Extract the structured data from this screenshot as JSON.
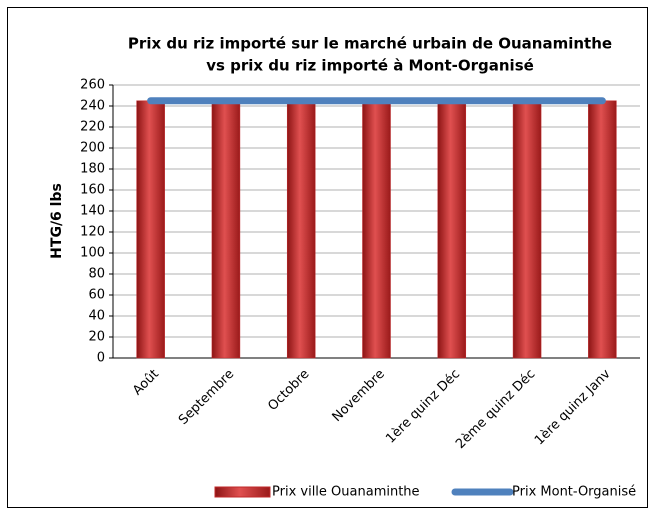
{
  "chart_data": {
    "type": "bar",
    "title": [
      "Prix du riz importé sur le marché urbain de Ouanaminthe",
      "vs  prix du riz importé à Mont-Organisé"
    ],
    "y_label": "HTG/6 lbs",
    "categories": [
      "Août",
      "Septembre",
      "Octobre",
      "Novembre",
      "1ère quinz Déc",
      "2ème quinz Déc",
      "1ère quinz Janv"
    ],
    "series": [
      {
        "name": "Prix ville Ouanaminthe",
        "type": "bar",
        "color": "#c0282a",
        "values": [
          245,
          245,
          245,
          245,
          245,
          245,
          245
        ]
      },
      {
        "name": "Prix Mont-Organisé",
        "type": "line",
        "color": "#4f81bd",
        "values": [
          245,
          245,
          245,
          245,
          245,
          245,
          245
        ]
      }
    ],
    "ylim": [
      0,
      260
    ],
    "yticks": [
      0,
      20,
      40,
      60,
      80,
      100,
      120,
      140,
      160,
      180,
      200,
      220,
      240,
      260
    ],
    "grid": true,
    "legend": "bottom"
  }
}
